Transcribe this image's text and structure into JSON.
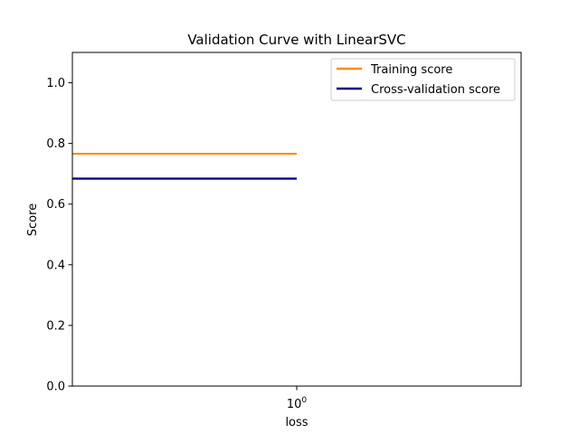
{
  "chart_data": {
    "type": "line",
    "title": "Validation Curve with LinearSVC",
    "xlabel": "loss",
    "ylabel": "Score",
    "xscale": "log",
    "ylim": [
      0.0,
      1.1
    ],
    "yticks": [
      0.0,
      0.2,
      0.4,
      0.6,
      0.8,
      1.0
    ],
    "ytick_labels": [
      "0.0",
      "0.2",
      "0.4",
      "0.6",
      "0.8",
      "1.0"
    ],
    "xtick_base": "10",
    "xtick_exponent": "0",
    "legend_position": "top-right",
    "series": [
      {
        "name": "Training score",
        "color": "#ff8c00",
        "x_range_decades": [
          -1,
          0
        ],
        "values": [
          0.766,
          0.766
        ],
        "band": [
          0.764,
          0.768
        ]
      },
      {
        "name": "Cross-validation score",
        "color": "#000080",
        "x_range_decades": [
          -1,
          0
        ],
        "values": [
          0.684,
          0.684
        ],
        "band": [
          0.679,
          0.689
        ]
      }
    ]
  }
}
